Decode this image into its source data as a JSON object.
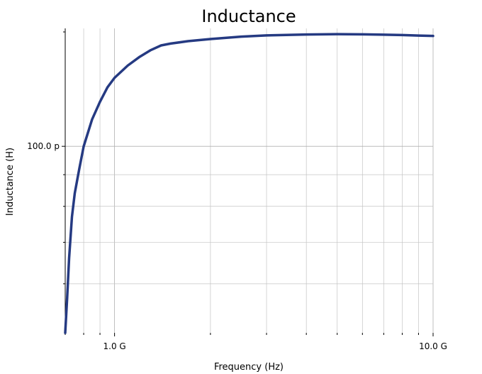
{
  "chart_data": {
    "type": "line",
    "title": "Inductance",
    "xlabel": "Frequency (Hz)",
    "ylabel": "Inductance (H)",
    "xscale": "log",
    "yscale": "log",
    "xlim": [
      700000000.0,
      10000000000.0
    ],
    "ylim": [
      5e-11,
      1.55e-10
    ],
    "grid": true,
    "x_ticks": [
      {
        "value": 1000000000.0,
        "label": "1.0 G"
      },
      {
        "value": 10000000000.0,
        "label": "10.0 G"
      }
    ],
    "y_ticks": [
      {
        "value": 1e-10,
        "label": "100.0 p"
      }
    ],
    "line_color": "#253a82",
    "series": [
      {
        "x": [
          700000000.0,
          710000000.0,
          720000000.0,
          735000000.0,
          750000000.0,
          775000000.0,
          800000000.0,
          850000000.0,
          900000000.0,
          950000000.0,
          1000000000.0,
          1100000000.0,
          1200000000.0,
          1300000000.0,
          1400000000.0,
          1500000000.0,
          1700000000.0,
          2000000000.0,
          2500000000.0,
          3000000000.0,
          4000000000.0,
          5000000000.0,
          6000000000.0,
          7000000000.0,
          8000000000.0,
          9000000000.0,
          10000000000.0
        ],
        "y": [
          5e-11,
          5.7e-11,
          6.6e-11,
          7.7e-11,
          8.4e-11,
          9.2e-11,
          1e-10,
          1.105e-10,
          1.18e-10,
          1.245e-10,
          1.29e-10,
          1.35e-10,
          1.395e-10,
          1.43e-10,
          1.455e-10,
          1.465e-10,
          1.478e-10,
          1.49e-10,
          1.503e-10,
          1.51e-10,
          1.515e-10,
          1.517e-10,
          1.516e-10,
          1.514e-10,
          1.512e-10,
          1.509e-10,
          1.507e-10
        ]
      }
    ]
  }
}
